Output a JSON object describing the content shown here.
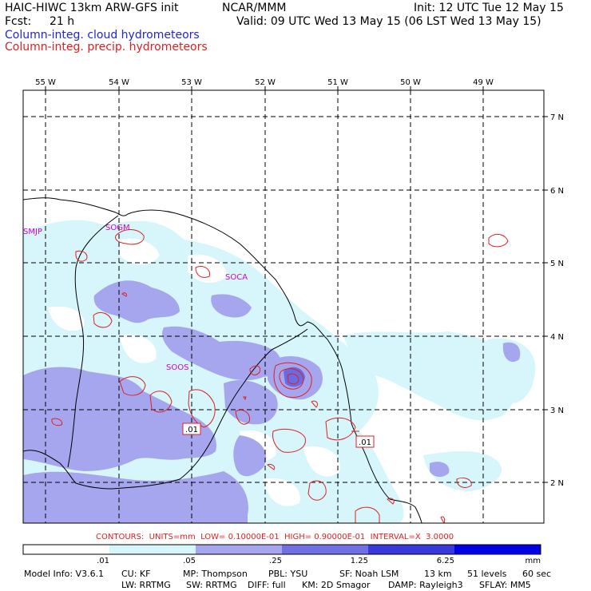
{
  "header": {
    "model": "HAIC-HIWC 13km ARW-GFS init",
    "center": "NCAR/MMM",
    "init": "Init: 12 UTC Tue 12 May 15",
    "fcst_label": "Fcst:",
    "fcst_value": "21 h",
    "valid": "Valid: 09 UTC Wed 13 May 15 (06 LST Wed 13 May 15)",
    "field_cloud": "Column-integ. cloud hydrometeors",
    "field_precip": "Column-integ. precip. hydrometeors"
  },
  "map": {
    "lon_labels": [
      "55 W",
      "54 W",
      "53 W",
      "52 W",
      "51 W",
      "50 W",
      "49 W"
    ],
    "lat_labels": [
      "7 N",
      "6 N",
      "5 N",
      "4 N",
      "3 N",
      "2 N"
    ],
    "stations": [
      "SMJP",
      "SOGM",
      "SOCA",
      "SOOS"
    ],
    "contour_labels": [
      ".01",
      ".01"
    ],
    "colors": {
      "fill_light": "#d6f6fb",
      "fill_medium": "#a6a6ee",
      "fill_strong": "#6a6ae2",
      "contour": "#e02020",
      "coast": "#000000",
      "station": "#d000d0"
    }
  },
  "contours_info": "CONTOURS:  UNITS=mm  LOW= 0.10000E-01  HIGH= 0.90000E-01  INTERVAL=X  3.0000",
  "colorbar": {
    "ticks": [
      ".01",
      ".05",
      ".25",
      "1.25",
      "6.25"
    ],
    "units": "mm",
    "colors": [
      "#ffffff",
      "#d6f6fb",
      "#a6a6ee",
      "#7070e4",
      "#3838dc",
      "#0000e8"
    ]
  },
  "footer": {
    "line1": [
      "Model Info: V3.6.1",
      "CU: KF",
      "MP: Thompson",
      "PBL: YSU",
      "SF: Noah LSM",
      "13 km",
      "51 levels",
      "60 sec"
    ],
    "line2": [
      "LW: RRTMG",
      "SW: RRTMG",
      "DIFF: full",
      "KM: 2D Smagor",
      "DAMP: Rayleigh3",
      "SFLAY: MM5"
    ]
  }
}
